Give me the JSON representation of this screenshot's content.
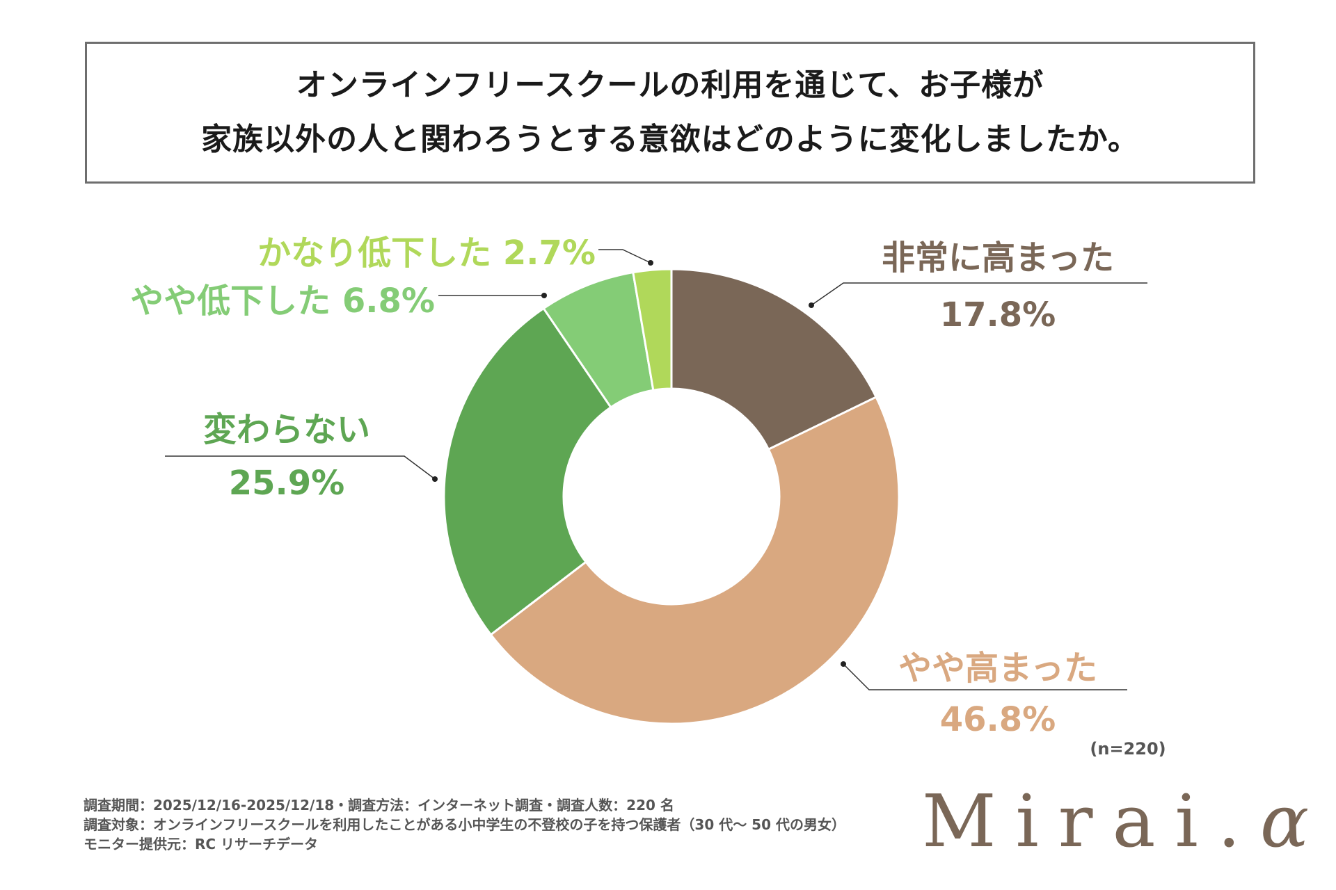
{
  "title": {
    "line1": "オンラインフリースクールの利用を通じて、お子様が",
    "line2": "家族以外の人と関わろうとする意欲はどのように変化しましたか。"
  },
  "chart_data": {
    "type": "pie",
    "donut": true,
    "title": "オンラインフリースクールの利用を通じて、お子様が家族以外の人と関わろうとする意欲はどのように変化しましたか。",
    "categories": [
      "非常に高まった",
      "やや高まった",
      "変わらない",
      "やや低下した",
      "かなり低下した"
    ],
    "values": [
      17.8,
      46.8,
      25.9,
      6.8,
      2.7
    ],
    "value_labels": [
      "17.8%",
      "46.8%",
      "25.9%",
      "6.8%",
      "2.7%"
    ],
    "colors": [
      "#7a6757",
      "#d9a880",
      "#5ea653",
      "#84cc76",
      "#b0d85a"
    ],
    "sample": "(n=220)"
  },
  "footer": {
    "line1": "調査期間：2025/12/16-2025/12/18・調査方法：インターネット調査・調査人数：220 名",
    "line2": "調査対象：オンラインフリースクールを利用したことがある小中学生の不登校の子を持つ保護者（30 代～ 50 代の男女）",
    "line3": "モニター提供元：RC リサーチデータ"
  },
  "logo": {
    "text": "Mirai.α",
    "dot_color": "#7aaed0"
  }
}
